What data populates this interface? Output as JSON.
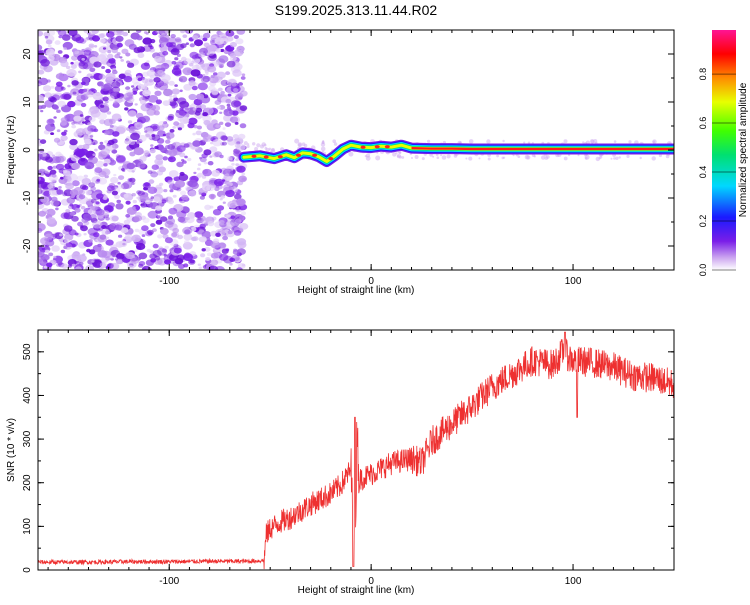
{
  "title": "S199.2025.313.11.44.R02",
  "spectrogram": {
    "xlabel": "Height of straight line (km)",
    "ylabel": "Frequency (Hz)",
    "xlim": [
      -165,
      150
    ],
    "ylim": [
      -25,
      25
    ],
    "xticks": [
      -100,
      0,
      100
    ],
    "yticks": [
      -20,
      -10,
      0,
      10,
      20
    ],
    "noise_region_x": [
      -165,
      -63
    ],
    "signal_region_x": [
      -63,
      150
    ],
    "noise_color": "#7a1ee8",
    "signal_track_x": [
      -63,
      -55,
      -48,
      -42,
      -38,
      -34,
      -30,
      -26,
      -22,
      -18,
      -14,
      -10,
      -5,
      0,
      5,
      10,
      15,
      20,
      30,
      40,
      50,
      60,
      80,
      100,
      120,
      150
    ],
    "signal_track_freq": [
      -1.5,
      -1.2,
      -1.8,
      -1.0,
      -1.6,
      -0.6,
      -0.8,
      -1.4,
      -2.4,
      -1.2,
      0.2,
      1.0,
      0.6,
      0.5,
      0.8,
      0.6,
      1.0,
      0.4,
      0.3,
      0.3,
      0.2,
      0.2,
      0.2,
      0.2,
      0.2,
      0.2
    ]
  },
  "colorbar": {
    "label": "Normalized spectral amplitude",
    "ticks": [
      "0.0",
      "0.2",
      "0.4",
      "0.6",
      "0.8"
    ],
    "tick_values": [
      0.0,
      0.2,
      0.4,
      0.6,
      0.8
    ],
    "colors": [
      "#ffffff",
      "#cda8f0",
      "#7a1ee8",
      "#1a1aff",
      "#00d8ff",
      "#00e070",
      "#40ff00",
      "#e8ff00",
      "#ff8c00",
      "#ff0000",
      "#ff1493"
    ]
  },
  "chart_data": [
    {
      "type": "heatmap",
      "title": "S199.2025.313.11.44.R02",
      "xlabel": "Height of straight line (km)",
      "ylabel": "Frequency (Hz)",
      "xlim": [
        -165,
        150
      ],
      "ylim": [
        -25,
        25
      ],
      "description_values": "Narrow-band signal near 0 Hz from -63 km to 150 km; broadband noise below -63 km"
    },
    {
      "type": "line",
      "xlabel": "Height of straight line (km)",
      "ylabel": "SNR (10 * v/v)",
      "xlim": [
        -165,
        150
      ],
      "ylim": [
        0,
        550
      ],
      "xticks": [
        -100,
        0,
        100
      ],
      "yticks": [
        0,
        100,
        200,
        300,
        400,
        500
      ],
      "color": "#ee3030",
      "series": [
        {
          "name": "SNR",
          "x": [
            -165,
            -140,
            -120,
            -100,
            -80,
            -60,
            -53,
            -52,
            -50,
            -45,
            -40,
            -30,
            -20,
            -15,
            -10,
            -8,
            -7,
            -6,
            -5,
            0,
            10,
            20,
            25,
            30,
            40,
            50,
            60,
            70,
            80,
            90,
            95,
            100,
            110,
            120,
            130,
            140,
            150
          ],
          "y": [
            18,
            18,
            19,
            19,
            20,
            20,
            22,
            80,
            95,
            110,
            120,
            150,
            175,
            195,
            230,
            5,
            340,
            200,
            210,
            220,
            245,
            255,
            245,
            295,
            335,
            375,
            420,
            450,
            480,
            470,
            500,
            480,
            475,
            465,
            445,
            440,
            425
          ]
        }
      ]
    }
  ],
  "snr_axis": {
    "xlabel": "Height of straight line (km)",
    "ylabel": "SNR (10 * v/v)",
    "xticks": [
      -100,
      0,
      100
    ],
    "yticks": [
      0,
      100,
      200,
      300,
      400,
      500
    ]
  }
}
